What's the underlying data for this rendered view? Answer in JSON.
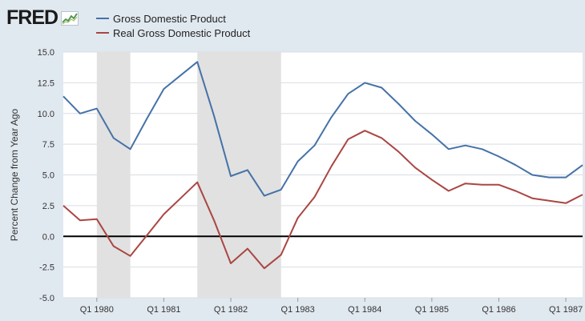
{
  "brand": {
    "name": "FRED"
  },
  "colors": {
    "background": "#e1e9f0",
    "plot_bg": "#ffffff",
    "gdp": "#4572a7",
    "real_gdp": "#aa4643",
    "recession": "#e1e1e1",
    "zero_line": "#000000",
    "grid": "#d9dde2"
  },
  "chart_data": {
    "type": "line",
    "ylabel": "Percent Change from Year Ago",
    "ylim": [
      -5.0,
      15.0
    ],
    "yticks": [
      "-5.0",
      "-2.5",
      "0.0",
      "2.5",
      "5.0",
      "7.5",
      "10.0",
      "12.5",
      "15.0"
    ],
    "xtick_labels": [
      "Q1 1980",
      "Q1 1981",
      "Q1 1982",
      "Q1 1983",
      "Q1 1984",
      "Q1 1985",
      "Q1 1986",
      "Q1 1987"
    ],
    "x": [
      "Q3 1979",
      "Q4 1979",
      "Q1 1980",
      "Q2 1980",
      "Q3 1980",
      "Q4 1980",
      "Q1 1981",
      "Q2 1981",
      "Q3 1981",
      "Q4 1981",
      "Q1 1982",
      "Q2 1982",
      "Q3 1982",
      "Q4 1982",
      "Q1 1983",
      "Q2 1983",
      "Q3 1983",
      "Q4 1983",
      "Q1 1984",
      "Q2 1984",
      "Q3 1984",
      "Q4 1984",
      "Q1 1985",
      "Q2 1985",
      "Q3 1985",
      "Q4 1985",
      "Q1 1986",
      "Q2 1986",
      "Q3 1986",
      "Q4 1986",
      "Q1 1987",
      "Q2 1987"
    ],
    "recessions": [
      [
        "Q1 1980",
        "Q3 1980"
      ],
      [
        "Q3 1981",
        "Q4 1982"
      ]
    ],
    "zero_line": 0,
    "grid": true,
    "legend_position": "top-left",
    "series": [
      {
        "name": "Gross Domestic Product",
        "color": "#4572a7",
        "values": [
          11.4,
          10.0,
          10.4,
          8.0,
          7.1,
          9.6,
          12.0,
          13.1,
          14.2,
          9.8,
          4.9,
          5.4,
          3.3,
          3.8,
          6.1,
          7.4,
          9.7,
          11.6,
          12.5,
          12.1,
          10.8,
          9.4,
          8.3,
          7.1,
          7.4,
          7.1,
          6.5,
          5.8,
          5.0,
          4.8,
          4.8,
          5.8
        ]
      },
      {
        "name": "Real Gross Domestic Product",
        "color": "#aa4643",
        "values": [
          2.5,
          1.3,
          1.4,
          -0.8,
          -1.6,
          0.1,
          1.8,
          3.1,
          4.4,
          1.3,
          -2.2,
          -1.0,
          -2.6,
          -1.5,
          1.5,
          3.2,
          5.7,
          7.9,
          8.6,
          8.0,
          6.9,
          5.6,
          4.6,
          3.7,
          4.3,
          4.2,
          4.2,
          3.7,
          3.1,
          2.9,
          2.7,
          3.4
        ]
      }
    ]
  }
}
